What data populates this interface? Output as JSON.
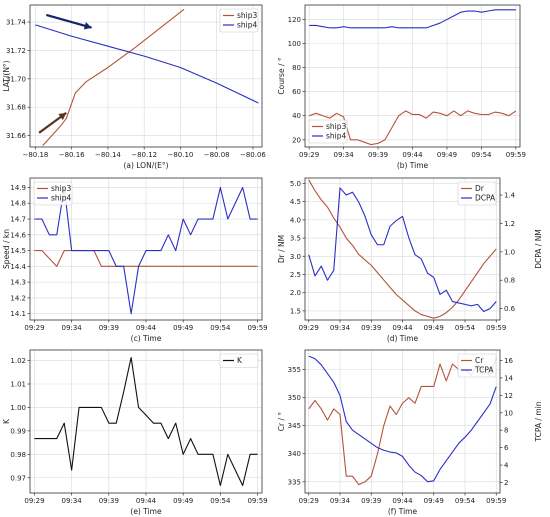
{
  "colors": {
    "red": "#b5533a",
    "blue": "#2b2fc4",
    "black": "#111111",
    "arrow": "#13256b",
    "arrow2": "#5a3224"
  },
  "chart_data": [
    {
      "id": "a",
      "type": "line",
      "xlabel": "(a) LON/(E°)",
      "ylabel": "LAT/(N°)",
      "xlim": [
        -80.183,
        -80.055
      ],
      "ylim": [
        31.652,
        31.752
      ],
      "xticks": [
        -80.18,
        -80.16,
        -80.14,
        -80.12,
        -80.1,
        -80.08,
        -80.06
      ],
      "xticklabels": [
        "−80.18",
        "−80.16",
        "−80.14",
        "−80.12",
        "−80.10",
        "−80.08",
        "−80.06"
      ],
      "yticks": [
        31.66,
        31.68,
        31.7,
        31.72,
        31.74
      ],
      "yticklabels": [
        "31.66",
        "31.68",
        "31.70",
        "31.72",
        "31.74"
      ],
      "legend": "top-right",
      "series": [
        {
          "name": "ship3",
          "color": "red",
          "x": [
            -80.176,
            -80.166,
            -80.163,
            -80.158,
            -80.152,
            -80.14,
            -80.125,
            -80.11,
            -80.098
          ],
          "y": [
            31.653,
            31.667,
            31.672,
            31.69,
            31.698,
            31.708,
            31.722,
            31.737,
            31.749
          ]
        },
        {
          "name": "ship4",
          "color": "blue",
          "x": [
            -80.18,
            -80.16,
            -80.14,
            -80.12,
            -80.1,
            -80.08,
            -80.057
          ],
          "y": [
            31.738,
            31.73,
            31.723,
            31.716,
            31.708,
            31.697,
            31.683
          ]
        }
      ],
      "arrows": [
        {
          "color": "arrow",
          "x1": -80.174,
          "y1": 31.745,
          "x2": -80.149,
          "y2": 31.736
        },
        {
          "color": "arrow2",
          "x1": -80.178,
          "y1": 31.662,
          "x2": -80.163,
          "y2": 31.676
        }
      ]
    },
    {
      "id": "b",
      "type": "line",
      "xlabel": "(b) Time",
      "ylabel": "Course / °",
      "xlim": [
        -0.6,
        30.6
      ],
      "ylim": [
        14,
        132
      ],
      "xticks": [
        0,
        5,
        10,
        15,
        20,
        25,
        30
      ],
      "xticklabels": [
        "09:29",
        "09:34",
        "09:39",
        "09:44",
        "09:49",
        "09:54",
        "09:59"
      ],
      "yticks": [
        20,
        40,
        60,
        80,
        100,
        120
      ],
      "yticklabels": [
        "20",
        "40",
        "60",
        "80",
        "100",
        "120"
      ],
      "legend": "bottom-left",
      "series": [
        {
          "name": "ship3",
          "color": "red",
          "values": [
            40,
            42,
            40,
            38,
            42,
            39,
            20,
            20,
            18,
            16,
            17,
            20,
            30,
            40,
            44,
            41,
            41,
            38,
            43,
            42,
            40,
            44,
            40,
            44,
            42,
            41,
            41,
            43,
            42,
            40,
            44
          ]
        },
        {
          "name": "ship4",
          "color": "blue",
          "values": [
            115,
            115,
            114,
            113,
            113,
            114,
            113,
            113,
            113,
            113,
            113,
            113,
            114,
            113,
            113,
            113,
            113,
            113,
            115,
            117,
            120,
            123,
            126,
            127,
            127,
            126,
            127,
            128,
            128,
            128,
            128
          ]
        }
      ]
    },
    {
      "id": "c",
      "type": "line",
      "xlabel": "(c) Time",
      "ylabel": "Speed / kn",
      "xlim": [
        -0.6,
        30.6
      ],
      "ylim": [
        14.06,
        14.96
      ],
      "xticks": [
        0,
        5,
        10,
        15,
        20,
        25,
        30
      ],
      "xticklabels": [
        "09:29",
        "09:34",
        "09:39",
        "09:44",
        "09:49",
        "09:54",
        "09:59"
      ],
      "yticks": [
        14.1,
        14.2,
        14.3,
        14.4,
        14.5,
        14.6,
        14.7,
        14.8,
        14.9
      ],
      "yticklabels": [
        "14.1",
        "14.2",
        "14.3",
        "14.4",
        "14.5",
        "14.6",
        "14.7",
        "14.8",
        "14.9"
      ],
      "legend": "top-left",
      "series": [
        {
          "name": "ship3",
          "color": "red",
          "values": [
            14.5,
            14.5,
            14.45,
            14.4,
            14.5,
            14.5,
            14.5,
            14.5,
            14.5,
            14.4,
            14.4,
            14.4,
            14.4,
            14.4,
            14.4,
            14.4,
            14.4,
            14.4,
            14.4,
            14.4,
            14.4,
            14.4,
            14.4,
            14.4,
            14.4,
            14.4,
            14.4,
            14.4,
            14.4,
            14.4,
            14.4
          ]
        },
        {
          "name": "ship4",
          "color": "blue",
          "values": [
            14.7,
            14.7,
            14.6,
            14.6,
            14.9,
            14.5,
            14.5,
            14.5,
            14.5,
            14.5,
            14.5,
            14.4,
            14.4,
            14.1,
            14.4,
            14.5,
            14.5,
            14.5,
            14.6,
            14.5,
            14.7,
            14.6,
            14.7,
            14.7,
            14.7,
            14.9,
            14.7,
            14.8,
            14.9,
            14.7,
            14.7
          ]
        }
      ]
    },
    {
      "id": "d",
      "type": "line",
      "xlabel": "(d) Time",
      "ylabel": "Dr / NM",
      "y2label": "DCPA / NM",
      "xlim": [
        -0.6,
        30.6
      ],
      "ylim": [
        1.25,
        5.15
      ],
      "y2lim": [
        0.52,
        1.52
      ],
      "xticks": [
        0,
        5,
        10,
        15,
        20,
        25,
        30
      ],
      "xticklabels": [
        "09:29",
        "09:34",
        "09:39",
        "09:44",
        "09:49",
        "09:54",
        "09:59"
      ],
      "yticks": [
        1.5,
        2.0,
        2.5,
        3.0,
        3.5,
        4.0,
        4.5,
        5.0
      ],
      "yticklabels": [
        "1.5",
        "2.0",
        "2.5",
        "3.0",
        "3.5",
        "4.0",
        "4.5",
        "5.0"
      ],
      "y2ticks": [
        0.6,
        0.8,
        1.0,
        1.2,
        1.4
      ],
      "y2ticklabels": [
        "0.6",
        "0.8",
        "1.0",
        "1.2",
        "1.4"
      ],
      "legend": "top-right",
      "series": [
        {
          "name": "Dr",
          "color": "red",
          "axis": "left",
          "values": [
            5.1,
            4.8,
            4.55,
            4.35,
            4.05,
            3.8,
            3.5,
            3.3,
            3.05,
            2.9,
            2.75,
            2.55,
            2.35,
            2.15,
            1.95,
            1.8,
            1.65,
            1.5,
            1.4,
            1.35,
            1.3,
            1.35,
            1.45,
            1.6,
            1.8,
            2.05,
            2.3,
            2.55,
            2.8,
            3.0,
            3.2
          ]
        },
        {
          "name": "DCPA",
          "color": "blue",
          "axis": "right",
          "values": [
            0.98,
            0.83,
            0.9,
            0.8,
            0.87,
            1.45,
            1.4,
            1.42,
            1.35,
            1.25,
            1.12,
            1.05,
            1.05,
            1.18,
            1.22,
            1.25,
            1.1,
            0.98,
            0.95,
            0.85,
            0.82,
            0.7,
            0.73,
            0.65,
            0.64,
            0.63,
            0.62,
            0.63,
            0.58,
            0.6,
            0.65
          ]
        }
      ]
    },
    {
      "id": "e",
      "type": "line",
      "xlabel": "(e) Time",
      "ylabel": "K",
      "xlim": [
        -0.6,
        30.6
      ],
      "ylim": [
        0.9635,
        1.0245
      ],
      "xticks": [
        0,
        5,
        10,
        15,
        20,
        25,
        30
      ],
      "xticklabels": [
        "09:29",
        "09:34",
        "09:39",
        "09:44",
        "09:49",
        "09:54",
        "09:59"
      ],
      "yticks": [
        0.97,
        0.98,
        0.99,
        1.0,
        1.01,
        1.02
      ],
      "yticklabels": [
        "0.97",
        "0.98",
        "0.99",
        "1.00",
        "1.01",
        "1.02"
      ],
      "legend": "top-right",
      "series": [
        {
          "name": "K",
          "color": "black",
          "values": [
            0.9867,
            0.9867,
            0.9867,
            0.9867,
            0.9933,
            0.9733,
            1.0,
            1.0,
            1.0,
            1.0,
            0.9933,
            0.9933,
            1.0067,
            1.0213,
            1.0,
            0.9967,
            0.9933,
            0.9933,
            0.9867,
            0.9933,
            0.98,
            0.9867,
            0.98,
            0.98,
            0.98,
            0.9667,
            0.98,
            0.9733,
            0.9667,
            0.98,
            0.98
          ]
        }
      ]
    },
    {
      "id": "f",
      "type": "line",
      "xlabel": "(f) Time",
      "ylabel": "Cr / °",
      "y2label": "TCPA / min",
      "xlim": [
        -0.6,
        30.6
      ],
      "ylim": [
        333,
        358.5
      ],
      "y2lim": [
        0.8,
        17.2
      ],
      "xticks": [
        0,
        5,
        10,
        15,
        20,
        25,
        30
      ],
      "xticklabels": [
        "09:29",
        "09:34",
        "09:39",
        "09:44",
        "09:49",
        "09:54",
        "09:59"
      ],
      "yticks": [
        335,
        340,
        345,
        350,
        355
      ],
      "yticklabels": [
        "335",
        "340",
        "345",
        "350",
        "355"
      ],
      "y2ticks": [
        2,
        4,
        6,
        8,
        10,
        12,
        14,
        16
      ],
      "y2ticklabels": [
        "2",
        "4",
        "6",
        "8",
        "10",
        "12",
        "14",
        "16"
      ],
      "legend": "top-right",
      "series": [
        {
          "name": "Cr",
          "color": "red",
          "axis": "left",
          "values": [
            348,
            349.5,
            348,
            346,
            348,
            347,
            336,
            336,
            334.5,
            335,
            336,
            340,
            345,
            348.5,
            347,
            349,
            350,
            349,
            352,
            352,
            352,
            356,
            353,
            356,
            355,
            355,
            354,
            356,
            355,
            354,
            357
          ]
        },
        {
          "name": "TCPA",
          "color": "blue",
          "axis": "right",
          "values": [
            16.5,
            16.2,
            15.5,
            14.5,
            13.5,
            12,
            9,
            8,
            7.5,
            7,
            6.5,
            6,
            5.7,
            5.5,
            5.4,
            5,
            4,
            3.2,
            2.8,
            2.1,
            2.2,
            3.5,
            4.5,
            5.5,
            6.5,
            7.2,
            8,
            9,
            10,
            11,
            13
          ]
        }
      ]
    }
  ]
}
